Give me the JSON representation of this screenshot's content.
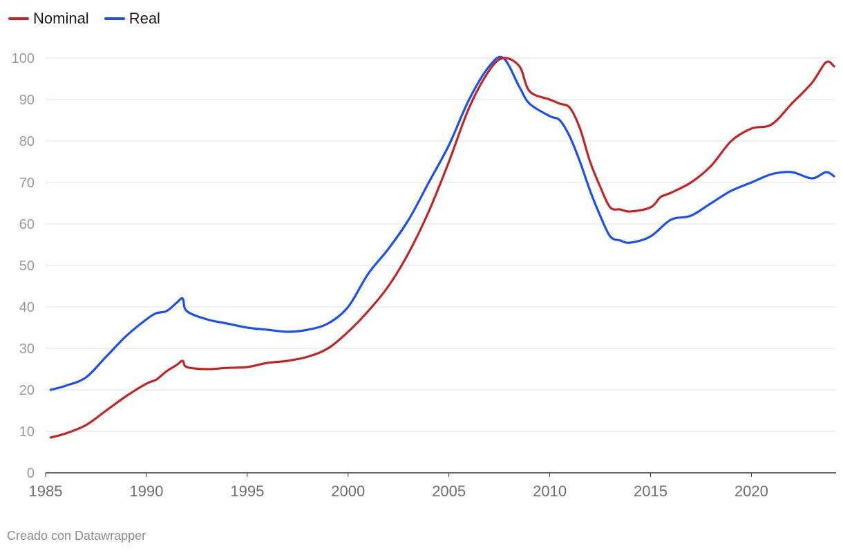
{
  "credit": "Creado con Datawrapper",
  "chart_data": {
    "type": "line",
    "title": "",
    "xlabel": "",
    "ylabel": "",
    "xlim": [
      1985,
      2024.2
    ],
    "ylim": [
      0,
      100
    ],
    "y_ticks": [
      0,
      10,
      20,
      30,
      40,
      50,
      60,
      70,
      80,
      90,
      100
    ],
    "x_ticks": [
      1985,
      1990,
      1995,
      2000,
      2005,
      2010,
      2015,
      2020
    ],
    "grid": "horizontal",
    "legend_position": "top-left",
    "series": [
      {
        "name": "Nominal",
        "color": "#c42424",
        "points": [
          [
            1985.25,
            8.5
          ],
          [
            1986,
            9.5
          ],
          [
            1987,
            11.5
          ],
          [
            1988,
            15
          ],
          [
            1989,
            18.5
          ],
          [
            1990,
            21.5
          ],
          [
            1990.5,
            22.5
          ],
          [
            1991,
            24.5
          ],
          [
            1991.5,
            26
          ],
          [
            1991.8,
            27
          ],
          [
            1992,
            25.5
          ],
          [
            1993,
            25
          ],
          [
            1994,
            25.3
          ],
          [
            1995,
            25.5
          ],
          [
            1996,
            26.5
          ],
          [
            1997,
            27
          ],
          [
            1998,
            28
          ],
          [
            1999,
            30
          ],
          [
            2000,
            34
          ],
          [
            2001,
            39
          ],
          [
            2002,
            45
          ],
          [
            2003,
            53
          ],
          [
            2004,
            63
          ],
          [
            2005,
            75
          ],
          [
            2006,
            88
          ],
          [
            2007,
            97
          ],
          [
            2007.7,
            100
          ],
          [
            2008.5,
            98
          ],
          [
            2009,
            92
          ],
          [
            2010,
            90
          ],
          [
            2010.5,
            89
          ],
          [
            2011,
            88
          ],
          [
            2011.5,
            83
          ],
          [
            2012,
            75
          ],
          [
            2012.5,
            69
          ],
          [
            2013,
            64
          ],
          [
            2013.5,
            63.5
          ],
          [
            2014,
            63
          ],
          [
            2015,
            64
          ],
          [
            2015.5,
            66.5
          ],
          [
            2016,
            67.5
          ],
          [
            2017,
            70
          ],
          [
            2018,
            74
          ],
          [
            2019,
            80
          ],
          [
            2020,
            83
          ],
          [
            2021,
            84
          ],
          [
            2022,
            89
          ],
          [
            2023,
            94
          ],
          [
            2023.7,
            99
          ],
          [
            2024.1,
            98
          ]
        ]
      },
      {
        "name": "Real",
        "color": "#1a4ff5",
        "points": [
          [
            1985.25,
            20
          ],
          [
            1986,
            21
          ],
          [
            1987,
            23
          ],
          [
            1988,
            28
          ],
          [
            1989,
            33
          ],
          [
            1990,
            37
          ],
          [
            1990.5,
            38.5
          ],
          [
            1991,
            39
          ],
          [
            1991.5,
            41
          ],
          [
            1991.8,
            42
          ],
          [
            1992,
            39
          ],
          [
            1993,
            37
          ],
          [
            1994,
            36
          ],
          [
            1995,
            35
          ],
          [
            1996,
            34.5
          ],
          [
            1997,
            34
          ],
          [
            1998,
            34.5
          ],
          [
            1999,
            36
          ],
          [
            2000,
            40
          ],
          [
            2001,
            48
          ],
          [
            2002,
            54
          ],
          [
            2003,
            61
          ],
          [
            2004,
            70
          ],
          [
            2005,
            79
          ],
          [
            2006,
            90
          ],
          [
            2007,
            98
          ],
          [
            2007.7,
            100
          ],
          [
            2008.5,
            93
          ],
          [
            2009,
            89
          ],
          [
            2010,
            86
          ],
          [
            2010.5,
            85
          ],
          [
            2011,
            81
          ],
          [
            2011.5,
            75
          ],
          [
            2012,
            68
          ],
          [
            2012.5,
            62
          ],
          [
            2013,
            57
          ],
          [
            2013.5,
            56
          ],
          [
            2014,
            55.5
          ],
          [
            2015,
            57
          ],
          [
            2016,
            61
          ],
          [
            2017,
            62
          ],
          [
            2018,
            65
          ],
          [
            2019,
            68
          ],
          [
            2020,
            70
          ],
          [
            2021,
            72
          ],
          [
            2022,
            72.5
          ],
          [
            2023,
            71
          ],
          [
            2023.7,
            72.5
          ],
          [
            2024.1,
            71.5
          ]
        ]
      }
    ]
  }
}
